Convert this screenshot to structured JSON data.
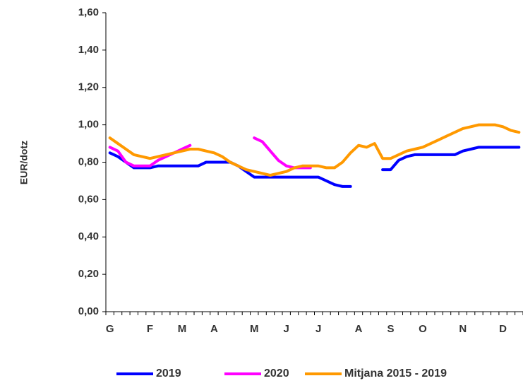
{
  "chart_data": {
    "type": "line",
    "y_label": "EUR/dotz",
    "categories": [
      "G",
      null,
      null,
      null,
      null,
      "F",
      null,
      null,
      null,
      "M",
      null,
      null,
      null,
      "A",
      null,
      null,
      null,
      null,
      "M",
      null,
      null,
      null,
      "J",
      null,
      null,
      null,
      "J",
      null,
      null,
      null,
      null,
      "A",
      null,
      null,
      null,
      "S",
      null,
      null,
      null,
      "O",
      null,
      null,
      null,
      null,
      "N",
      null,
      null,
      null,
      null,
      "D",
      null,
      null
    ],
    "series": [
      {
        "name": "2019",
        "color": "#0000ff",
        "values": [
          0.85,
          0.83,
          0.8,
          0.77,
          0.77,
          0.77,
          0.78,
          0.78,
          0.78,
          0.78,
          0.78,
          0.78,
          0.8,
          0.8,
          0.8,
          0.8,
          0.78,
          0.75,
          0.72,
          0.72,
          0.72,
          0.72,
          0.72,
          0.72,
          0.72,
          0.72,
          0.72,
          0.7,
          0.68,
          0.67,
          0.67,
          null,
          null,
          null,
          0.76,
          0.76,
          0.81,
          0.83,
          0.84,
          0.84,
          0.84,
          0.84,
          0.84,
          0.84,
          0.86,
          0.87,
          0.88,
          0.88,
          0.88,
          0.88,
          0.88,
          0.88
        ]
      },
      {
        "name": "2020",
        "color": "#ff00ff",
        "values": [
          0.88,
          0.86,
          0.8,
          0.78,
          0.78,
          0.78,
          0.81,
          0.83,
          0.85,
          0.87,
          0.89,
          null,
          null,
          null,
          null,
          null,
          null,
          null,
          0.93,
          0.91,
          0.86,
          0.81,
          0.78,
          0.77,
          0.77,
          0.77,
          null,
          null,
          null,
          null,
          null,
          null,
          null,
          null,
          null,
          null,
          null,
          null,
          null,
          null,
          null,
          null,
          null,
          null,
          null,
          null,
          null,
          null,
          null,
          null,
          null,
          null
        ]
      },
      {
        "name": "Mitjana 2015 - 2019",
        "color": "#ff9900",
        "values": [
          0.93,
          0.9,
          0.87,
          0.84,
          0.83,
          0.82,
          0.83,
          0.84,
          0.85,
          0.86,
          0.87,
          0.87,
          0.86,
          0.85,
          0.83,
          0.8,
          0.78,
          0.76,
          0.75,
          0.74,
          0.73,
          0.74,
          0.75,
          0.77,
          0.78,
          0.78,
          0.78,
          0.77,
          0.77,
          0.8,
          0.85,
          0.89,
          0.88,
          0.9,
          0.82,
          0.82,
          0.84,
          0.86,
          0.87,
          0.88,
          0.9,
          0.92,
          0.94,
          0.96,
          0.98,
          0.99,
          1.0,
          1.0,
          1.0,
          0.99,
          0.97,
          0.96
        ]
      }
    ],
    "ylim": [
      0,
      1.6
    ],
    "yticks": [
      {
        "value": 0,
        "label": "0,00"
      },
      {
        "value": 0.2,
        "label": "0,20"
      },
      {
        "value": 0.4,
        "label": "0,40"
      },
      {
        "value": 0.6,
        "label": "0,60"
      },
      {
        "value": 0.8,
        "label": "0,80"
      },
      {
        "value": 1,
        "label": "1,00"
      },
      {
        "value": 1.2,
        "label": "1,20"
      },
      {
        "value": 1.4,
        "label": "1,40"
      },
      {
        "value": 1.6,
        "label": "1,60"
      }
    ],
    "grid": false,
    "legend": "bottom"
  }
}
